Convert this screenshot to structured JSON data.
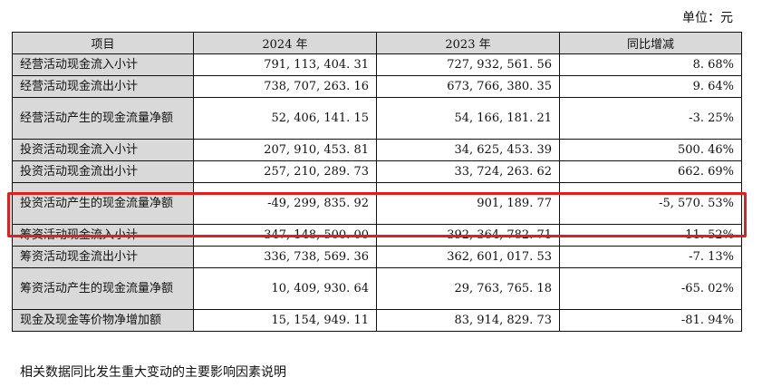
{
  "unit_label": "单位：元",
  "table": {
    "headers": [
      "项目",
      "2024 年",
      "2023 年",
      "同比增减"
    ],
    "rows": [
      {
        "item": "经营活动现金流入小计",
        "y2024": "791, 113, 404. 31",
        "y2023": "727, 932, 561. 56",
        "change": "8. 68%"
      },
      {
        "item": "经营活动现金流出小计",
        "y2024": "738, 707, 263. 16",
        "y2023": "673, 766, 380. 35",
        "change": "9. 64%"
      },
      {
        "item": "经营活动产生的现金流量净额",
        "y2024": "52, 406, 141. 15",
        "y2023": "54, 166, 181. 21",
        "change": "-3. 25%"
      },
      {
        "item": "投资活动现金流入小计",
        "y2024": "207, 910, 453. 81",
        "y2023": "34, 625, 453. 39",
        "change": "500. 46%"
      },
      {
        "item": "投资活动现金流出小计",
        "y2024": "257, 210, 289. 73",
        "y2023": "33, 724, 263. 62",
        "change": "662. 69%"
      },
      {
        "item": "投资活动产生的现金流量净额",
        "y2024": "-49, 299, 835. 92",
        "y2023": "901, 189. 77",
        "change": "-5, 570. 53%"
      },
      {
        "item": "筹资活动现金流入小计",
        "y2024": "347, 148, 500. 00",
        "y2023": "392, 364, 782. 71",
        "change": "-11. 52%"
      },
      {
        "item": "筹资活动现金流出小计",
        "y2024": "336, 738, 569. 36",
        "y2023": "362, 601, 017. 53",
        "change": "-7. 13%"
      },
      {
        "item": "筹资活动产生的现金流量净额",
        "y2024": "10, 409, 930. 64",
        "y2023": "29, 763, 765. 18",
        "change": "-65. 02%"
      },
      {
        "item": "现金及现金等价物净增加额",
        "y2024": "15, 154, 949. 11",
        "y2023": "83, 914, 829. 73",
        "change": "-81. 94%"
      }
    ]
  },
  "highlight_color": "#e02020",
  "note": "相关数据同比发生重大变动的主要影响因素说明"
}
